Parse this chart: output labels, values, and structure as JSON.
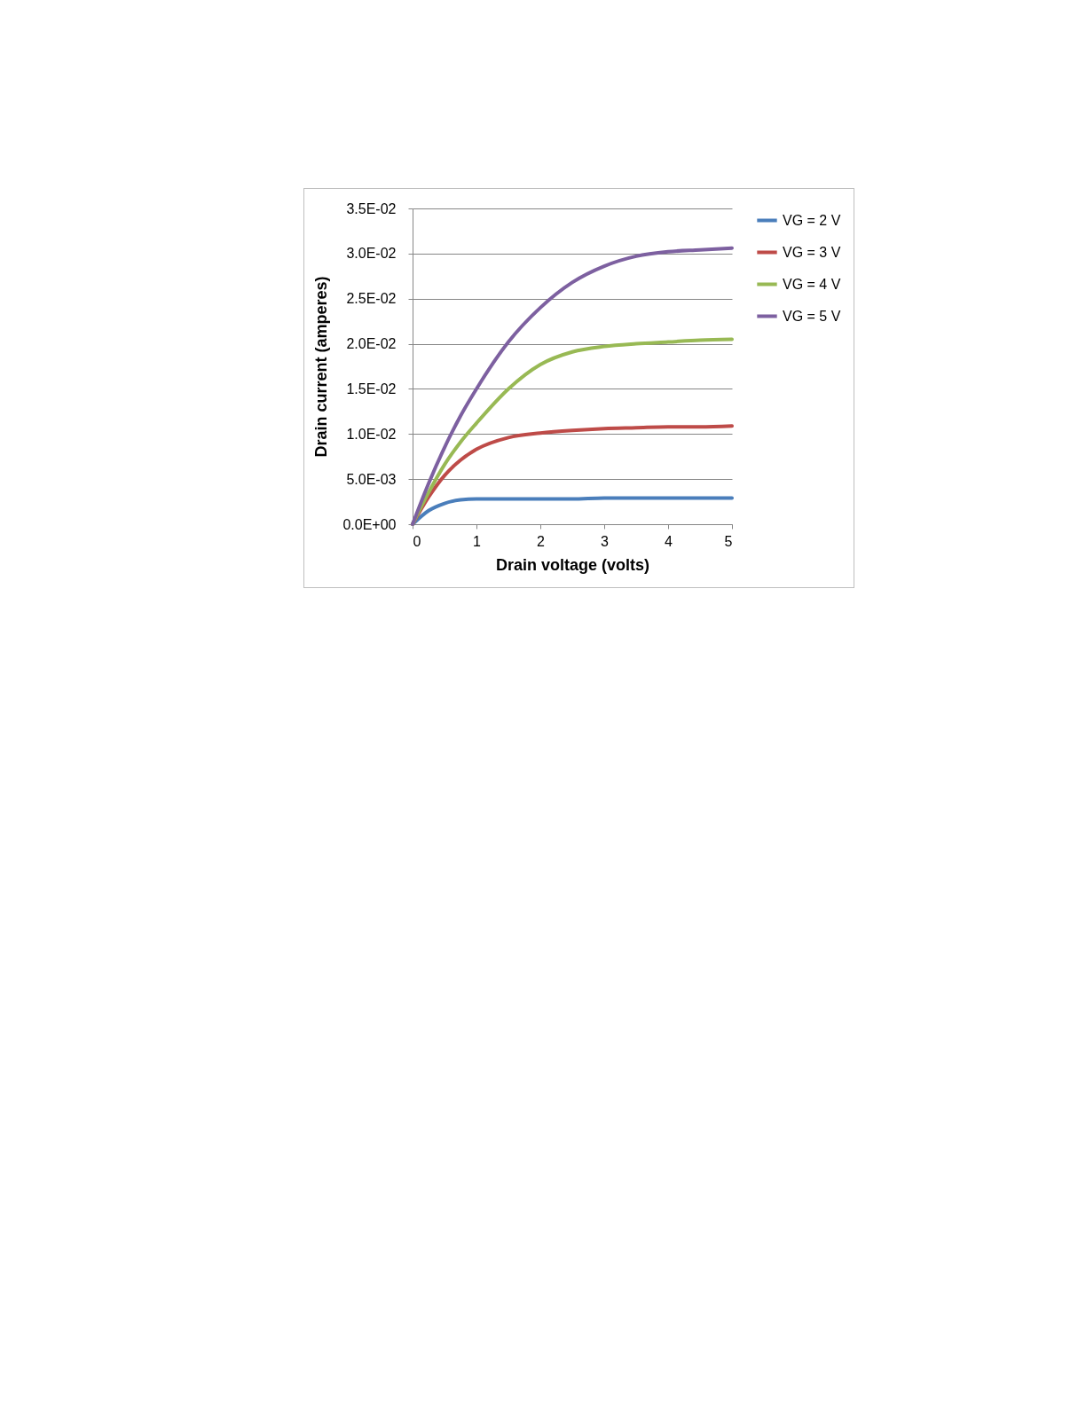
{
  "chart_data": {
    "type": "line",
    "xlabel": "Drain voltage (volts)",
    "ylabel": "Drain current (amperes)",
    "x": [
      0,
      0.25,
      0.5,
      0.75,
      1,
      1.5,
      2,
      2.5,
      3,
      3.5,
      4,
      4.5,
      5
    ],
    "series": [
      {
        "name": "VG = 2 V",
        "color": "#4a7ebb",
        "values": [
          0,
          0.0015,
          0.0023,
          0.0027,
          0.0028,
          0.0028,
          0.0028,
          0.0028,
          0.0029,
          0.0029,
          0.0029,
          0.0029,
          0.0029
        ]
      },
      {
        "name": "VG = 3 V",
        "color": "#be4b48",
        "values": [
          0,
          0.003,
          0.0054,
          0.0071,
          0.0083,
          0.0096,
          0.0101,
          0.0104,
          0.0106,
          0.0107,
          0.0108,
          0.0108,
          0.0109
        ]
      },
      {
        "name": "VG = 4 V",
        "color": "#98b954",
        "values": [
          0,
          0.0035,
          0.0066,
          0.0091,
          0.0112,
          0.015,
          0.0177,
          0.0191,
          0.0197,
          0.02,
          0.0202,
          0.0204,
          0.0205
        ]
      },
      {
        "name": "VG = 5 V",
        "color": "#7d60a0",
        "values": [
          0,
          0.0045,
          0.0085,
          0.012,
          0.015,
          0.0202,
          0.024,
          0.0268,
          0.0286,
          0.0297,
          0.0302,
          0.0304,
          0.0306
        ]
      }
    ],
    "xlim": [
      0,
      5
    ],
    "xticks": [
      0,
      1,
      2,
      3,
      4,
      5
    ],
    "ylim": [
      0,
      0.035
    ],
    "yticks": [
      {
        "value": 0,
        "label": "0.0E+00"
      },
      {
        "value": 0.005,
        "label": "5.0E-03"
      },
      {
        "value": 0.01,
        "label": "1.0E-02"
      },
      {
        "value": 0.015,
        "label": "1.5E-02"
      },
      {
        "value": 0.02,
        "label": "2.0E-02"
      },
      {
        "value": 0.025,
        "label": "2.5E-02"
      },
      {
        "value": 0.03,
        "label": "3.0E-02"
      },
      {
        "value": 0.035,
        "label": "3.5E-02"
      }
    ],
    "grid": "y",
    "legend": "right",
    "marker": "none",
    "line_style": "solid"
  }
}
